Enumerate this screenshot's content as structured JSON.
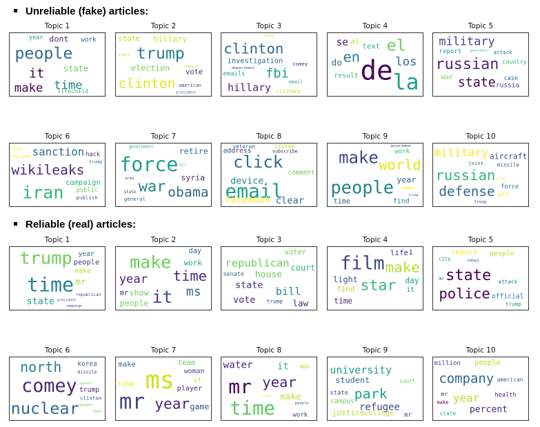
{
  "sections": [
    {
      "heading": "Unreliable (fake) articles:",
      "topics": [
        {
          "title": "Topic 1",
          "words": [
            [
              "year",
              "#1f9e89"
            ],
            [
              "dont",
              "#482878"
            ],
            [
              "work",
              "#31688e"
            ],
            [
              "people",
              "#31688e"
            ],
            [
              "it",
              "#440154"
            ],
            [
              "state",
              "#6ece58"
            ],
            [
              "time",
              "#26828e"
            ],
            [
              "make",
              "#440154"
            ],
            [
              "lifechild",
              "#35b779"
            ]
          ]
        },
        {
          "title": "Topic 2",
          "words": [
            [
              "state",
              "#b5de2b"
            ],
            [
              "hillary",
              "#d0e11c"
            ],
            [
              "people",
              "#b5de2b"
            ],
            [
              "trump",
              "#26828e"
            ],
            [
              "election",
              "#6ece58"
            ],
            [
              "vote",
              "#482878"
            ],
            [
              "campaign",
              "#b5de2b"
            ],
            [
              "clinton",
              "#e5e419"
            ],
            [
              "american",
              "#3e4989"
            ],
            [
              "president",
              "#31688e"
            ]
          ]
        },
        {
          "title": "Topic 3",
          "words": [
            [
              "state",
              "#b5de2b"
            ],
            [
              "clinton",
              "#31688e"
            ],
            [
              "investigation",
              "#31688e"
            ],
            [
              "department",
              "#3e4989"
            ],
            [
              "comey",
              "#482878"
            ],
            [
              "emails",
              "#1f9e89"
            ],
            [
              "fbi",
              "#1f9e89"
            ],
            [
              "hillary",
              "#482878"
            ],
            [
              "email",
              "#1f9e89"
            ],
            [
              "clintons",
              "#b5de2b"
            ]
          ]
        },
        {
          "title": "Topic 4",
          "words": [
            [
              "se",
              "#482878"
            ],
            [
              "al",
              "#b5de2b"
            ],
            [
              "do",
              "#31688e"
            ],
            [
              "text",
              "#35b779"
            ],
            [
              "en",
              "#26828e"
            ],
            [
              "el",
              "#6ece58"
            ],
            [
              "los",
              "#31688e"
            ],
            [
              "result",
              "#35b779"
            ],
            [
              "de",
              "#440154"
            ],
            [
              "la",
              "#1f9e89"
            ]
          ]
        },
        {
          "title": "Topic 5",
          "words": [
            [
              "military",
              "#3e4989"
            ],
            [
              "report",
              "#1f9e89"
            ],
            [
              "government",
              "#35b779"
            ],
            [
              "attack",
              "#26828e"
            ],
            [
              "russian",
              "#482878"
            ],
            [
              "war",
              "#6ece58"
            ],
            [
              "state",
              "#440154"
            ],
            [
              "country",
              "#35b779"
            ],
            [
              "russia",
              "#3e4989"
            ],
            [
              "case",
              "#31688e"
            ]
          ]
        },
        {
          "title": "Topic 6",
          "words": [
            [
              "leak",
              "#fde725"
            ],
            [
              "sanction",
              "#31688e"
            ],
            [
              "hack",
              "#482878"
            ],
            [
              "trump",
              "#31688e"
            ],
            [
              "wikileaks",
              "#482878"
            ],
            [
              "nuclear",
              "#fde725"
            ],
            [
              "campaign",
              "#35b779"
            ],
            [
              "iran",
              "#35b779"
            ],
            [
              "public",
              "#6ece58"
            ],
            [
              "publish",
              "#31688e"
            ]
          ]
        },
        {
          "title": "Topic 7",
          "words": [
            [
              "government",
              "#35b779"
            ],
            [
              "retire",
              "#31688e"
            ],
            [
              "force",
              "#1f9e89"
            ],
            [
              "air",
              "#6ece58"
            ],
            [
              "army",
              "#3e4989"
            ],
            [
              "war",
              "#26828e"
            ],
            [
              "syria",
              "#482878"
            ],
            [
              "general",
              "#31688e"
            ],
            [
              "obama",
              "#31688e"
            ],
            [
              "state",
              "#482878"
            ]
          ]
        },
        {
          "title": "Topic 8",
          "words": [
            [
              "veteran",
              "#31688e"
            ],
            [
              "listen",
              "#b5de2b"
            ],
            [
              "address",
              "#3e4989"
            ],
            [
              "subscribe",
              "#482878"
            ],
            [
              "click",
              "#31688e"
            ],
            [
              "comment",
              "#6ece58"
            ],
            [
              "device",
              "#26828e"
            ],
            [
              "email",
              "#1f9e89"
            ],
            [
              "facebook",
              "#fde725"
            ],
            [
              "clear",
              "#31688e"
            ]
          ]
        },
        {
          "title": "Topic 9",
          "words": [
            [
              "government",
              "#3e4989"
            ],
            [
              "make",
              "#3e4989"
            ],
            [
              "work",
              "#35b779"
            ],
            [
              "world",
              "#e5e419"
            ],
            [
              "year",
              "#31688e"
            ],
            [
              "woman",
              "#fde725"
            ],
            [
              "trump",
              "#31688e"
            ],
            [
              "people",
              "#26828e"
            ],
            [
              "time",
              "#31688e"
            ],
            [
              "find",
              "#26828e"
            ]
          ]
        },
        {
          "title": "Topic 10",
          "words": [
            [
              "military",
              "#fde725"
            ],
            [
              "aircraft",
              "#3e4989"
            ],
            [
              "missile",
              "#31688e"
            ],
            [
              "russian",
              "#35b779"
            ],
            [
              "system",
              "#fde725"
            ],
            [
              "defense",
              "#31688e"
            ],
            [
              "joint",
              "#31688e"
            ],
            [
              "air",
              "#fde725"
            ],
            [
              "troop",
              "#3e4989"
            ],
            [
              "force",
              "#31688e"
            ]
          ]
        }
      ]
    },
    {
      "heading": "Reliable (real) articles:",
      "topics": [
        {
          "title": "Topic 1",
          "words": [
            [
              "trump",
              "#6ece58"
            ],
            [
              "people",
              "#3e4989"
            ],
            [
              "make",
              "#b5de2b"
            ],
            [
              "year",
              "#31688e"
            ],
            [
              "time",
              "#26828e"
            ],
            [
              "mr",
              "#a0da39"
            ],
            [
              "state",
              "#1f9e89"
            ],
            [
              "president",
              "#3e4989"
            ],
            [
              "campaign",
              "#3e4989"
            ],
            [
              "republican",
              "#3e4989"
            ]
          ]
        },
        {
          "title": "Topic 2",
          "words": [
            [
              "day",
              "#31688e"
            ],
            [
              "make",
              "#6ece58"
            ],
            [
              "work",
              "#1f9e89"
            ],
            [
              "year",
              "#482878"
            ],
            [
              "time",
              "#482878"
            ],
            [
              "ms",
              "#31688e"
            ],
            [
              "people",
              "#6ece58"
            ],
            [
              "mr",
              "#482878"
            ],
            [
              "it",
              "#3e4989"
            ],
            [
              "show",
              "#6ece58"
            ]
          ]
        },
        {
          "title": "Topic 3",
          "words": [
            [
              "court",
              "#35b779"
            ],
            [
              "voter",
              "#6ece58"
            ],
            [
              "republican",
              "#6ece58"
            ],
            [
              "senate",
              "#31688e"
            ],
            [
              "house",
              "#6ece58"
            ],
            [
              "state",
              "#482878"
            ],
            [
              "bill",
              "#26828e"
            ],
            [
              "vote",
              "#482878"
            ],
            [
              "trump",
              "#3e4989"
            ],
            [
              "law",
              "#482878"
            ]
          ]
        },
        {
          "title": "Topic 4",
          "words": [
            [
              "film",
              "#3e4989"
            ],
            [
              "it",
              "#26828e"
            ],
            [
              "i",
              "#482878"
            ],
            [
              "light",
              "#3e4989"
            ],
            [
              "life",
              "#482878"
            ],
            [
              "day",
              "#1f9e89"
            ],
            [
              "find",
              "#b5de2b"
            ],
            [
              "star",
              "#35b779"
            ],
            [
              "time",
              "#482878"
            ],
            [
              "make",
              "#b5de2b"
            ]
          ]
        },
        {
          "title": "Topic 5",
          "words": [
            [
              "report",
              "#fde725"
            ],
            [
              "people",
              "#b5de2b"
            ],
            [
              "city",
              "#26828e"
            ],
            [
              "news",
              "#26828e"
            ],
            [
              "state",
              "#440154"
            ],
            [
              "mr",
              "#31688e"
            ],
            [
              "attack",
              "#26828e"
            ],
            [
              "police",
              "#440154"
            ],
            [
              "official",
              "#26828e"
            ],
            [
              "trump",
              "#1f9e89"
            ]
          ]
        },
        {
          "title": "Topic 6",
          "words": [
            [
              "north",
              "#26828e"
            ],
            [
              "korea",
              "#31688e"
            ],
            [
              "missile",
              "#3e4989"
            ],
            [
              "comey",
              "#482878"
            ],
            [
              "trump",
              "#482878"
            ],
            [
              "clinton",
              "#3e4989"
            ],
            [
              "weapon",
              "#6ece58"
            ],
            [
              "japan",
              "#6ece58"
            ],
            [
              "nuclear",
              "#31688e"
            ],
            [
              "japanese",
              "#6ece58"
            ]
          ]
        },
        {
          "title": "Topic 7",
          "words": [
            [
              "make",
              "#31688e"
            ],
            [
              "team",
              "#6ece58"
            ],
            [
              "woman",
              "#3e4989"
            ],
            [
              "ms",
              "#d0e11c"
            ],
            [
              "time",
              "#fde725"
            ],
            [
              "it",
              "#b5de2b"
            ],
            [
              "mr",
              "#3e4989"
            ],
            [
              "year",
              "#482878"
            ],
            [
              "game",
              "#3e4989"
            ],
            [
              "player",
              "#482878"
            ]
          ]
        },
        {
          "title": "Topic 8",
          "words": [
            [
              "water",
              "#482878"
            ],
            [
              "it",
              "#35b779"
            ],
            [
              "app",
              "#b5de2b"
            ],
            [
              "mr",
              "#440154"
            ],
            [
              "year",
              "#482878"
            ],
            [
              "city",
              "#fde725"
            ],
            [
              "make",
              "#b5de2b"
            ],
            [
              "time",
              "#5ec962"
            ],
            [
              "people",
              "#31688e"
            ],
            [
              "work",
              "#3e4989"
            ]
          ]
        },
        {
          "title": "Topic 9",
          "words": [
            [
              "university",
              "#1f9e89"
            ],
            [
              "student",
              "#31688e"
            ],
            [
              "court",
              "#6ece58"
            ],
            [
              "state",
              "#3e4989"
            ],
            [
              "park",
              "#1f9e89"
            ],
            [
              "campus",
              "#6ece58"
            ],
            [
              "refugee",
              "#3e4989"
            ],
            [
              "justice",
              "#b5de2b"
            ],
            [
              "college",
              "#b5de2b"
            ],
            [
              "mr",
              "#3e4989"
            ]
          ]
        },
        {
          "title": "Topic 10",
          "words": [
            [
              "million",
              "#3e4989"
            ],
            [
              "people",
              "#b5de2b"
            ],
            [
              "company",
              "#31688e"
            ],
            [
              "american",
              "#31688e"
            ],
            [
              "mr",
              "#482878"
            ],
            [
              "make",
              "#440154"
            ],
            [
              "year",
              "#b5de2b"
            ],
            [
              "health",
              "#482878"
            ],
            [
              "percent",
              "#482878"
            ],
            [
              "state",
              "#35b779"
            ]
          ]
        }
      ]
    }
  ]
}
